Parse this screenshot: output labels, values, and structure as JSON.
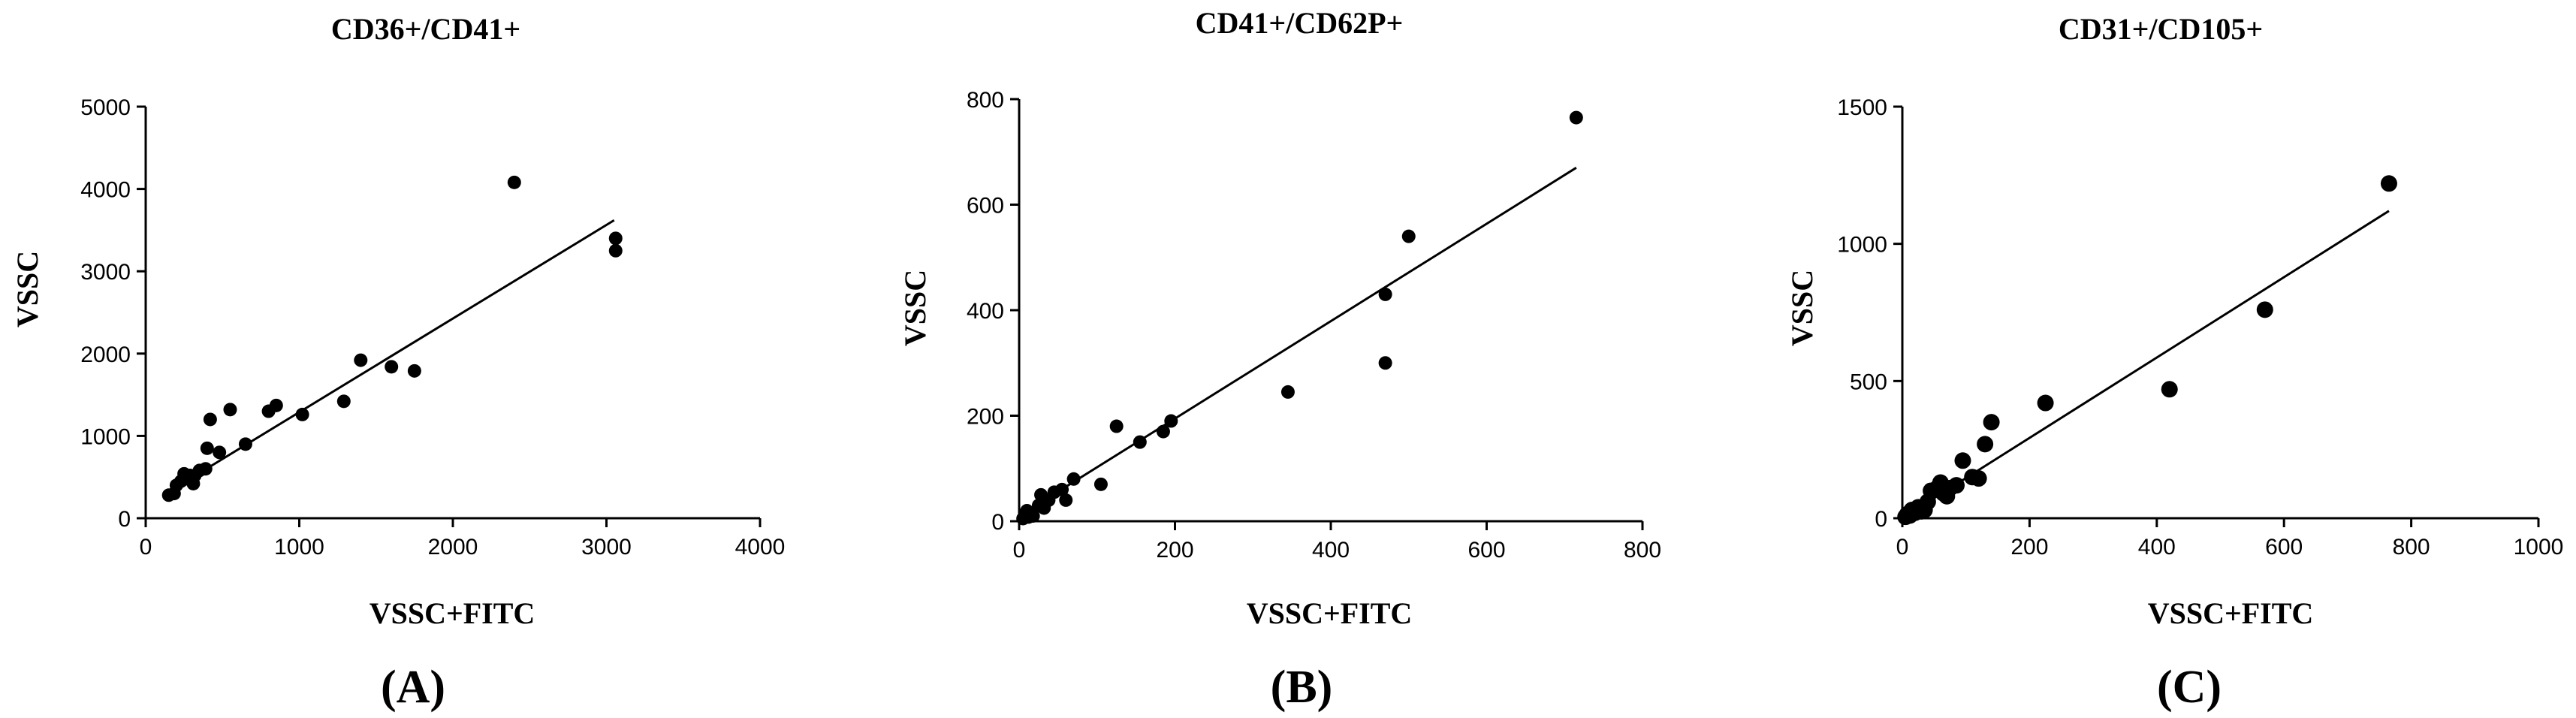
{
  "chart_data": [
    {
      "type": "scatter",
      "panel": "A",
      "title": "CD36+/CD41+",
      "xlabel": "VSSC+FITC",
      "ylabel": "VSSC",
      "xlim": [
        0,
        4000
      ],
      "ylim": [
        0,
        5000
      ],
      "xticks": [
        0,
        1000,
        2000,
        3000,
        4000
      ],
      "yticks": [
        0,
        1000,
        2000,
        3000,
        4000,
        5000
      ],
      "xtick_labels": [
        "0",
        "1000",
        "2000",
        "3000",
        "4000"
      ],
      "ytick_labels": [
        "0",
        "1000",
        "2000",
        "3000",
        "4000",
        "5000"
      ],
      "points": [
        [
          150,
          280
        ],
        [
          185,
          300
        ],
        [
          200,
          400
        ],
        [
          230,
          450
        ],
        [
          250,
          540
        ],
        [
          270,
          480
        ],
        [
          290,
          520
        ],
        [
          310,
          420
        ],
        [
          320,
          520
        ],
        [
          350,
          580
        ],
        [
          390,
          600
        ],
        [
          400,
          850
        ],
        [
          420,
          1200
        ],
        [
          480,
          800
        ],
        [
          550,
          1320
        ],
        [
          650,
          900
        ],
        [
          800,
          1300
        ],
        [
          850,
          1370
        ],
        [
          1020,
          1260
        ],
        [
          1290,
          1420
        ],
        [
          1400,
          1920
        ],
        [
          1600,
          1840
        ],
        [
          1750,
          1790
        ],
        [
          2400,
          4080
        ],
        [
          3060,
          3400
        ],
        [
          3060,
          3250
        ]
      ],
      "fit_line": [
        [
          140,
          310
        ],
        [
          3050,
          3620
        ]
      ]
    },
    {
      "type": "scatter",
      "panel": "B",
      "title": "CD41+/CD62P+",
      "xlabel": "VSSC+FITC",
      "ylabel": "VSSC",
      "xlim": [
        0,
        800
      ],
      "ylim": [
        0,
        800
      ],
      "xticks": [
        0,
        200,
        400,
        600,
        800
      ],
      "yticks": [
        0,
        200,
        400,
        600,
        800
      ],
      "xtick_labels": [
        "0",
        "200",
        "400",
        "600",
        "800"
      ],
      "ytick_labels": [
        "0",
        "200",
        "400",
        "600",
        "800"
      ],
      "points": [
        [
          5,
          5
        ],
        [
          8,
          15
        ],
        [
          10,
          20
        ],
        [
          12,
          8
        ],
        [
          18,
          10
        ],
        [
          25,
          30
        ],
        [
          28,
          50
        ],
        [
          32,
          25
        ],
        [
          38,
          40
        ],
        [
          45,
          55
        ],
        [
          55,
          60
        ],
        [
          60,
          40
        ],
        [
          70,
          80
        ],
        [
          105,
          70
        ],
        [
          125,
          180
        ],
        [
          155,
          150
        ],
        [
          185,
          170
        ],
        [
          195,
          190
        ],
        [
          345,
          245
        ],
        [
          470,
          430
        ],
        [
          470,
          300
        ],
        [
          500,
          540
        ],
        [
          715,
          765
        ]
      ],
      "fit_line": [
        [
          0,
          10
        ],
        [
          715,
          670
        ]
      ]
    },
    {
      "type": "scatter",
      "panel": "C",
      "title": "CD31+/CD105+",
      "xlabel": "VSSC+FITC",
      "ylabel": "VSSC",
      "xlim": [
        0,
        1000
      ],
      "ylim": [
        0,
        1500
      ],
      "xticks": [
        0,
        200,
        400,
        600,
        800,
        1000
      ],
      "yticks": [
        0,
        500,
        1000,
        1500
      ],
      "xtick_labels": [
        "0",
        "200",
        "400",
        "600",
        "800",
        "1000"
      ],
      "ytick_labels": [
        "0",
        "500",
        "1000",
        "1500"
      ],
      "points": [
        [
          5,
          5
        ],
        [
          8,
          15
        ],
        [
          12,
          10
        ],
        [
          15,
          30
        ],
        [
          20,
          20
        ],
        [
          25,
          40
        ],
        [
          30,
          25
        ],
        [
          35,
          30
        ],
        [
          40,
          60
        ],
        [
          45,
          100
        ],
        [
          55,
          110
        ],
        [
          60,
          130
        ],
        [
          65,
          90
        ],
        [
          70,
          80
        ],
        [
          75,
          110
        ],
        [
          85,
          120
        ],
        [
          95,
          210
        ],
        [
          110,
          150
        ],
        [
          120,
          145
        ],
        [
          130,
          270
        ],
        [
          140,
          350
        ],
        [
          225,
          420
        ],
        [
          420,
          470
        ],
        [
          570,
          760
        ],
        [
          765,
          1220
        ]
      ],
      "fit_line": [
        [
          0,
          0
        ],
        [
          765,
          1120
        ]
      ]
    }
  ],
  "panel_labels": [
    "(A)",
    "(B)",
    "(C)"
  ]
}
